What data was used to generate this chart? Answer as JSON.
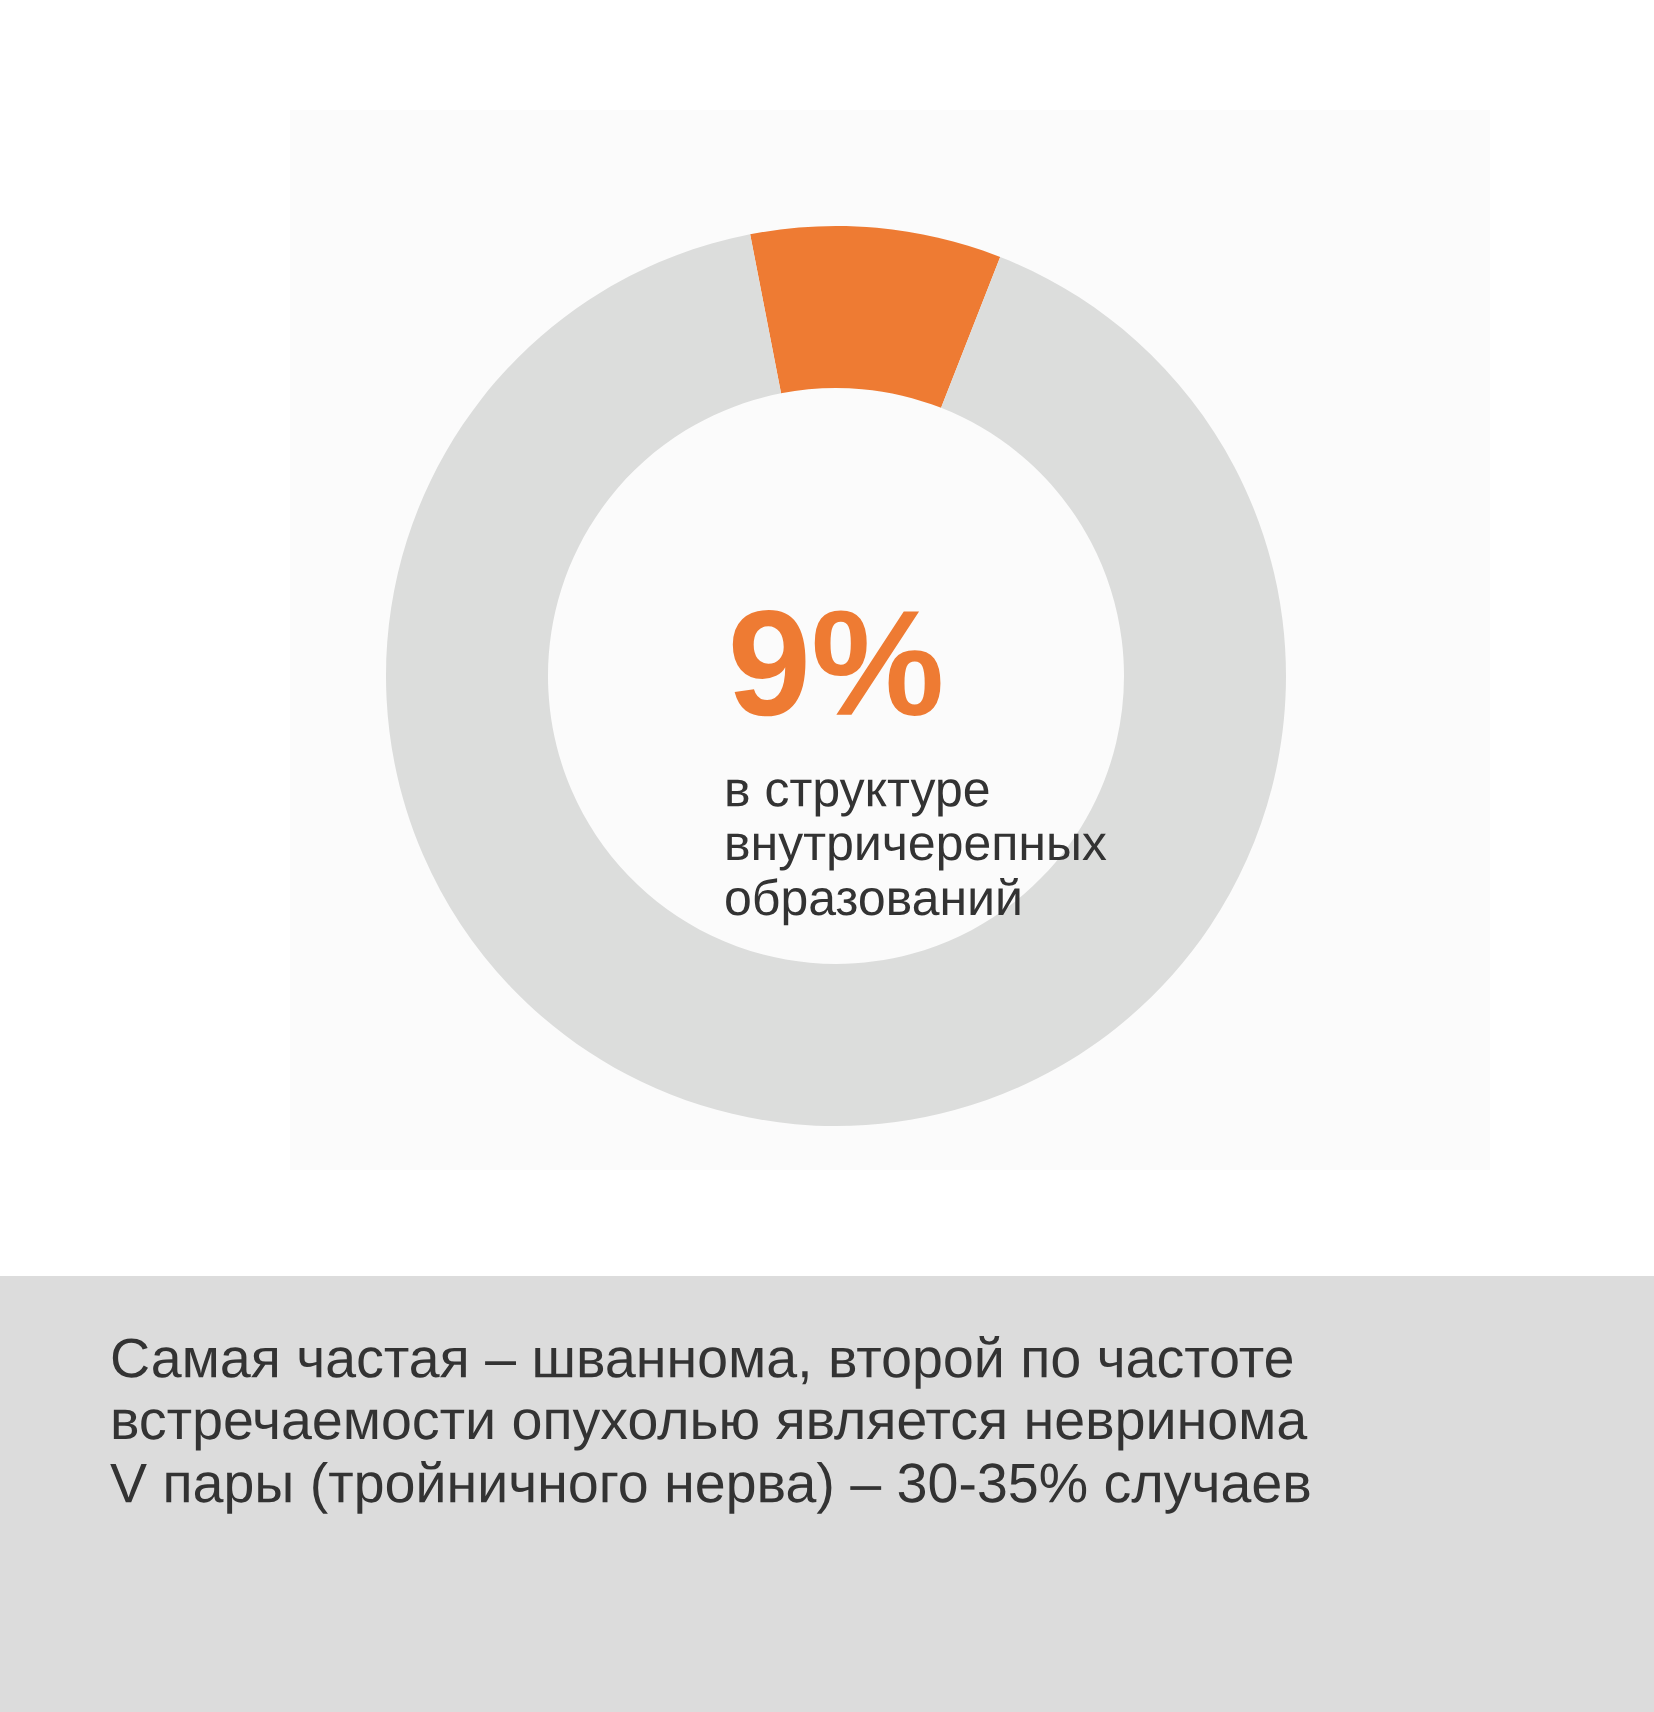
{
  "chart_data": {
    "type": "donut",
    "categories": [
      null,
      null
    ],
    "values": [
      9,
      91
    ],
    "colors": [
      "#ee7b33",
      "#dcdddc"
    ],
    "value_labels": [
      "9%",
      null
    ],
    "annotations": [
      "в структуре\nвнутричерепных\nобразований",
      "Самая частая – шваннома, второй по частоте\nвстречаемости опухолью является невринома\nV пары (тройничного нерва) – 30-35% случаев"
    ]
  }
}
